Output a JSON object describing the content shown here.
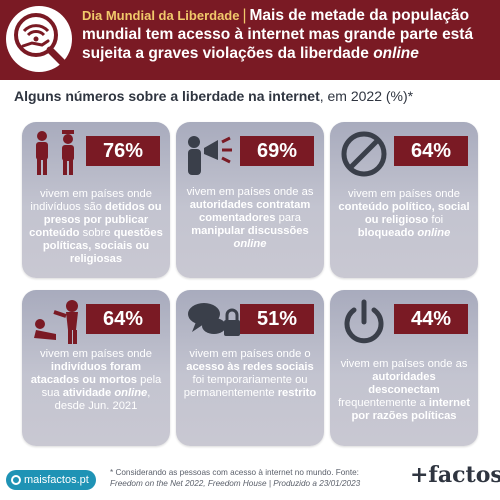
{
  "header": {
    "kicker": "Dia Mundial da Liberdade",
    "separator": "|",
    "title_a": "Mais de metade da população mundial tem acesso à internet mas grande parte está sujeita a graves violações da liberdade ",
    "title_b": "online"
  },
  "subtitle": {
    "bold": "Alguns números sobre a liberdade na internet",
    "rest": ", em 2022 (%)*"
  },
  "cards": [
    {
      "value": "76%",
      "icon": "detained-people-icon",
      "desc": [
        {
          "t": "vivem em países onde indivíduos são ",
          "s": "n"
        },
        {
          "t": "detidos ou presos por publicar conteúdo",
          "s": "b"
        },
        {
          "t": " sobre ",
          "s": "n"
        },
        {
          "t": "questões políticas, sociais ou religiosas",
          "s": "b"
        }
      ]
    },
    {
      "value": "69%",
      "icon": "megaphone-speaker-icon",
      "desc": [
        {
          "t": "vivem em países onde as ",
          "s": "n"
        },
        {
          "t": "autoridades contratam comentadores",
          "s": "b"
        },
        {
          "t": " para ",
          "s": "n"
        },
        {
          "t": "manipular discussões ",
          "s": "b"
        },
        {
          "t": "online",
          "s": "bi"
        }
      ]
    },
    {
      "value": "64%",
      "icon": "prohibited-icon",
      "desc": [
        {
          "t": "vivem em países onde ",
          "s": "n"
        },
        {
          "t": "conteúdo político, social ou religioso",
          "s": "b"
        },
        {
          "t": " foi ",
          "s": "n"
        },
        {
          "t": "bloqueado ",
          "s": "b"
        },
        {
          "t": "online",
          "s": "bi"
        }
      ]
    },
    {
      "value": "64%",
      "icon": "attack-icon",
      "desc": [
        {
          "t": "vivem em países onde ",
          "s": "n"
        },
        {
          "t": "indivíduos foram atacados ou mortos",
          "s": "b"
        },
        {
          "t": " pela sua ",
          "s": "n"
        },
        {
          "t": "atividade ",
          "s": "b"
        },
        {
          "t": "online",
          "s": "bi"
        },
        {
          "t": ", desde Jun. 2021",
          "s": "n"
        }
      ]
    },
    {
      "value": "51%",
      "icon": "locked-chat-icon",
      "desc": [
        {
          "t": "vivem em países onde o ",
          "s": "n"
        },
        {
          "t": "acesso às redes sociais",
          "s": "b"
        },
        {
          "t": " foi temporariamente ou permanentemente ",
          "s": "n"
        },
        {
          "t": "restrito",
          "s": "b"
        }
      ]
    },
    {
      "value": "44%",
      "icon": "power-icon",
      "desc": [
        {
          "t": "vivem em países onde as ",
          "s": "n"
        },
        {
          "t": "autoridades desconectam",
          "s": "b"
        },
        {
          "t": " frequentemente a ",
          "s": "n"
        },
        {
          "t": "internet por razões políticas",
          "s": "b"
        }
      ]
    }
  ],
  "footer": {
    "site": "maisfactos.pt",
    "note_a": "* Considerando as pessoas com acesso à internet no mundo. Fonte: ",
    "note_b": "Freedom on the Net 2022, Freedom House | Produzido a 23/01/2023",
    "brand": "+factos"
  },
  "colors": {
    "header_bg": "#7a1a24",
    "kicker": "#f1c96b",
    "card_top": "#a8abbd",
    "card_bottom": "#c9c8d2",
    "value_box": "#7a1a24",
    "pill": "#1f93b5"
  }
}
